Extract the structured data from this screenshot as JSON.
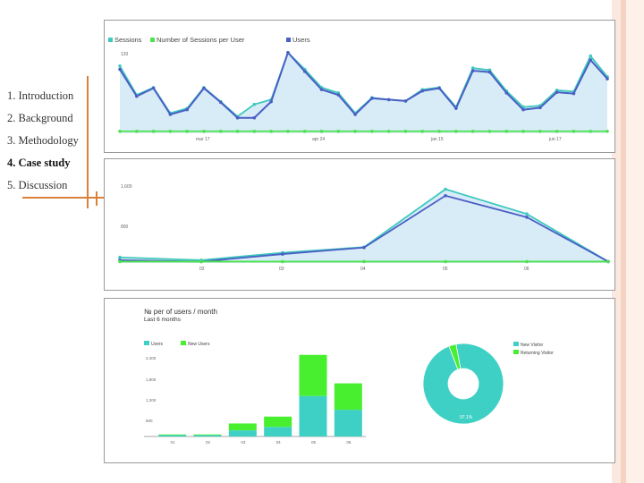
{
  "slide": {
    "outline": [
      {
        "label": "1. Introduction",
        "active": false
      },
      {
        "label": "2. Background",
        "active": false
      },
      {
        "label": "3. Methodology",
        "active": false
      },
      {
        "label": "4. Case study",
        "active": true
      },
      {
        "label": "5. Discussion",
        "active": false
      }
    ],
    "colors": {
      "accent": "#d9813a",
      "stripe_light": "#fbe8de",
      "stripe_mid": "#f5d3c2"
    }
  },
  "chart_data": [
    {
      "type": "area",
      "title": "",
      "legend": [
        "Sessions",
        "Number of Sessions per User",
        "Users"
      ],
      "legend_placement": "top-left",
      "ylabel_ticks": [
        "120",
        "60"
      ],
      "xlabel_ticks": [
        "mar 17",
        "apr 24",
        "jan 15",
        "jun 17"
      ],
      "ylim": [
        0,
        125
      ],
      "series": [
        {
          "name": "Sessions",
          "color": "#3fc8be",
          "values": [
            100,
            57,
            68,
            30,
            37,
            68,
            47,
            25,
            43,
            50,
            120,
            95,
            68,
            60,
            30,
            53,
            50,
            48,
            65,
            68,
            39,
            97,
            94,
            63,
            39,
            41,
            64,
            62,
            115,
            84
          ]
        },
        {
          "name": "Number of Sessions per User",
          "color": "#4ce34c",
          "values": [
            3,
            3,
            3,
            3,
            3,
            3,
            3,
            3,
            3,
            3,
            3,
            3,
            3,
            3,
            3,
            3,
            3,
            3,
            3,
            3,
            3,
            3,
            3,
            3,
            3,
            3,
            3,
            3,
            3,
            3
          ]
        },
        {
          "name": "Users",
          "color": "#4a5fc4",
          "values": [
            95,
            55,
            67,
            28,
            35,
            67,
            46,
            23,
            23,
            47,
            120,
            92,
            65,
            57,
            28,
            52,
            50,
            48,
            63,
            67,
            37,
            93,
            91,
            60,
            35,
            38,
            61,
            59,
            109,
            81
          ]
        }
      ]
    },
    {
      "type": "area",
      "title": "",
      "ylabel_ticks": [
        "1,600",
        "800"
      ],
      "xlabel_ticks": [
        "02",
        "03",
        "04",
        "05",
        "06"
      ],
      "categories": [
        "01",
        "02",
        "03",
        "04",
        "05",
        "06",
        "07"
      ],
      "ylim": [
        0,
        1800
      ],
      "series": [
        {
          "name": "Sessions",
          "color": "#3fc8be",
          "values": [
            120,
            60,
            220,
            340,
            1580,
            1050,
            30
          ]
        },
        {
          "name": "Users",
          "color": "#4a5fc4",
          "values": [
            60,
            30,
            190,
            330,
            1440,
            980,
            30
          ]
        },
        {
          "name": "Sessions per User",
          "color": "#4ce34c",
          "values": [
            30,
            30,
            30,
            30,
            30,
            30,
            30
          ]
        }
      ]
    },
    {
      "type": "bar",
      "title": "№ per of users / month",
      "subtitle": "Last 6 months",
      "legend": [
        "Users",
        "New Users"
      ],
      "yticks": [
        "2,400",
        "1,800",
        "1,200",
        "600"
      ],
      "categories": [
        "01",
        "02",
        "03",
        "04",
        "05",
        "06"
      ],
      "ylim": [
        0,
        2400
      ],
      "series": [
        {
          "name": "Users",
          "color": "#3fd0c5",
          "values": [
            40,
            40,
            180,
            280,
            1180,
            780
          ]
        },
        {
          "name": "New Users",
          "color": "#47ef2f",
          "values": [
            20,
            20,
            200,
            300,
            1200,
            770
          ]
        }
      ]
    },
    {
      "type": "pie",
      "legend": [
        "New Visitor",
        "Returning Visitor"
      ],
      "series": [
        {
          "name": "New Visitor",
          "color": "#3fd0c5",
          "value": 97.1
        },
        {
          "name": "Returning Visitor",
          "color": "#47ef2f",
          "value": 2.9
        }
      ],
      "data_label": "97.1%"
    }
  ]
}
